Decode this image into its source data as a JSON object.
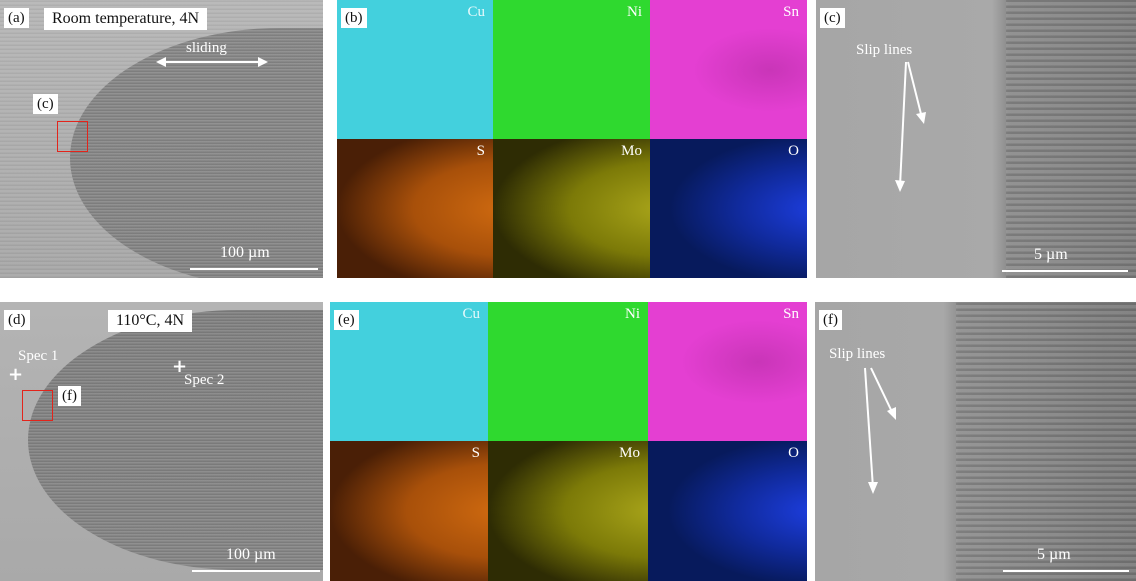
{
  "panels": {
    "a": {
      "tag": "(a)",
      "title": "Room temperature, 4N",
      "arrow_label": "sliding",
      "roi_tag": "(c)",
      "scale": "100 µm"
    },
    "b": {
      "tag": "(b)",
      "elements": [
        "Cu",
        "Ni",
        "Sn",
        "S",
        "Mo",
        "O"
      ],
      "colors": [
        "#3fd3dc",
        "#2fd92f",
        "#e23bd0",
        "#c85a0a",
        "#a3a000",
        "#1a3fd6"
      ]
    },
    "c": {
      "tag": "(c)",
      "annotation": "Slip lines",
      "scale": "5 µm"
    },
    "d": {
      "tag": "(d)",
      "title": "110°C, 4N",
      "spec1": "Spec 1",
      "spec2": "Spec 2",
      "roi_tag": "(f)",
      "scale": "100 µm"
    },
    "e": {
      "tag": "(e)",
      "elements": [
        "Cu",
        "Ni",
        "Sn",
        "S",
        "Mo",
        "O"
      ],
      "colors": [
        "#3fd3dc",
        "#2fd92f",
        "#e23bd0",
        "#c85a0a",
        "#a3a000",
        "#1a3fd6"
      ]
    },
    "f": {
      "tag": "(f)",
      "annotation": "Slip lines",
      "scale": "5 µm"
    }
  }
}
